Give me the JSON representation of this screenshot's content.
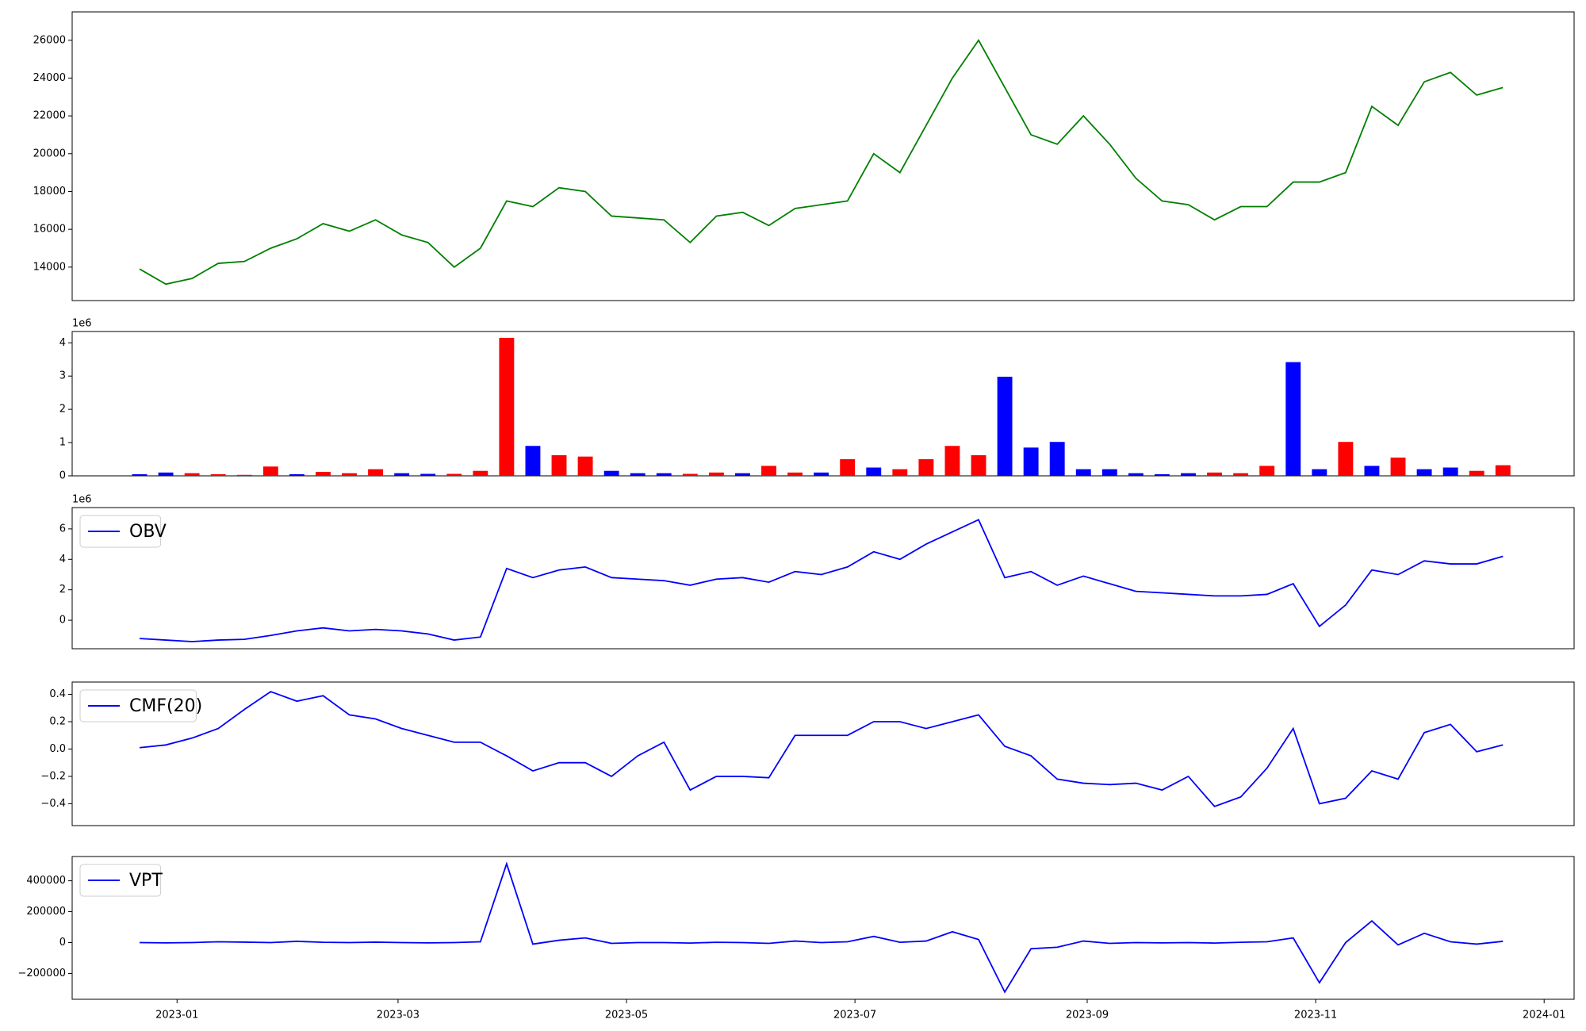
{
  "chart_data": [
    {
      "type": "line",
      "xlim": [
        "2022-12-04",
        "2024-01-09"
      ],
      "ylim": [
        12230,
        27500
      ],
      "yticks": [
        14000,
        16000,
        18000,
        20000,
        22000,
        24000,
        26000
      ],
      "x": [
        "2022-12-22",
        "2022-12-29",
        "2023-01-05",
        "2023-01-12",
        "2023-01-19",
        "2023-01-26",
        "2023-02-02",
        "2023-02-09",
        "2023-02-16",
        "2023-02-23",
        "2023-03-02",
        "2023-03-09",
        "2023-03-16",
        "2023-03-23",
        "2023-03-30",
        "2023-04-06",
        "2023-04-13",
        "2023-04-20",
        "2023-04-27",
        "2023-05-04",
        "2023-05-11",
        "2023-05-18",
        "2023-05-25",
        "2023-06-01",
        "2023-06-08",
        "2023-06-15",
        "2023-06-22",
        "2023-06-29",
        "2023-07-06",
        "2023-07-13",
        "2023-07-20",
        "2023-07-27",
        "2023-08-03",
        "2023-08-10",
        "2023-08-17",
        "2023-08-24",
        "2023-08-31",
        "2023-09-07",
        "2023-09-14",
        "2023-09-21",
        "2023-09-28",
        "2023-10-05",
        "2023-10-12",
        "2023-10-19",
        "2023-10-26",
        "2023-11-02",
        "2023-11-09",
        "2023-11-16",
        "2023-11-23",
        "2023-11-30",
        "2023-12-07",
        "2023-12-14",
        "2023-12-21"
      ],
      "series": [
        {
          "color": "#008000",
          "values": [
            13900,
            13100,
            13400,
            14200,
            14300,
            15000,
            15500,
            16300,
            15900,
            16500,
            15700,
            15300,
            14000,
            15000,
            17500,
            17200,
            18200,
            18000,
            16700,
            16600,
            16500,
            15300,
            16700,
            16900,
            16200,
            17100,
            17300,
            17500,
            20000,
            19000,
            21500,
            24000,
            26000,
            23500,
            21000,
            20500,
            22000,
            20500,
            18700,
            17500,
            17300,
            16500,
            17200,
            17200,
            18500,
            18500,
            19000,
            22500,
            21500,
            23800,
            24300,
            23100,
            23500
          ]
        }
      ]
    },
    {
      "type": "bar",
      "offset_label": "1e6",
      "xlim": [
        "2022-12-04",
        "2024-01-09"
      ],
      "ylim": [
        0,
        4.34
      ],
      "yticks": [
        0,
        1,
        2,
        3,
        4
      ],
      "x": [
        "2022-12-22",
        "2022-12-29",
        "2023-01-05",
        "2023-01-12",
        "2023-01-19",
        "2023-01-26",
        "2023-02-02",
        "2023-02-09",
        "2023-02-16",
        "2023-02-23",
        "2023-03-02",
        "2023-03-09",
        "2023-03-16",
        "2023-03-23",
        "2023-03-30",
        "2023-04-06",
        "2023-04-13",
        "2023-04-20",
        "2023-04-27",
        "2023-05-04",
        "2023-05-11",
        "2023-05-18",
        "2023-05-25",
        "2023-06-01",
        "2023-06-08",
        "2023-06-15",
        "2023-06-22",
        "2023-06-29",
        "2023-07-06",
        "2023-07-13",
        "2023-07-20",
        "2023-07-27",
        "2023-08-03",
        "2023-08-10",
        "2023-08-17",
        "2023-08-24",
        "2023-08-31",
        "2023-09-07",
        "2023-09-14",
        "2023-09-21",
        "2023-09-28",
        "2023-10-05",
        "2023-10-12",
        "2023-10-19",
        "2023-10-26",
        "2023-11-02",
        "2023-11-09",
        "2023-11-16",
        "2023-11-23",
        "2023-11-30",
        "2023-12-07",
        "2023-12-14",
        "2023-12-21"
      ],
      "values": [
        0.05,
        0.1,
        0.08,
        0.05,
        0.03,
        0.28,
        0.05,
        0.12,
        0.08,
        0.2,
        0.08,
        0.06,
        0.06,
        0.15,
        4.15,
        0.9,
        0.62,
        0.58,
        0.15,
        0.08,
        0.08,
        0.06,
        0.1,
        0.08,
        0.3,
        0.1,
        0.1,
        0.5,
        0.25,
        0.2,
        0.5,
        0.9,
        0.62,
        2.98,
        0.85,
        1.02,
        0.2,
        0.2,
        0.08,
        0.05,
        0.08,
        0.1,
        0.08,
        0.3,
        3.42,
        0.2,
        1.02,
        0.3,
        0.55,
        0.2,
        0.25,
        0.15,
        0.32
      ],
      "colors": [
        "blue",
        "blue",
        "red",
        "red",
        "red",
        "red",
        "blue",
        "red",
        "red",
        "red",
        "blue",
        "blue",
        "red",
        "red",
        "red",
        "blue",
        "red",
        "red",
        "blue",
        "blue",
        "blue",
        "red",
        "red",
        "blue",
        "red",
        "red",
        "blue",
        "red",
        "blue",
        "red",
        "red",
        "red",
        "red",
        "blue",
        "blue",
        "blue",
        "blue",
        "blue",
        "blue",
        "blue",
        "blue",
        "red",
        "red",
        "red",
        "blue",
        "blue",
        "red",
        "blue",
        "red",
        "blue",
        "blue",
        "red",
        "red"
      ]
    },
    {
      "type": "line",
      "offset_label": "1e6",
      "legend": "upper left",
      "xlim": [
        "2022-12-04",
        "2024-01-09"
      ],
      "ylim": [
        -1.87,
        7.4
      ],
      "yticks": [
        0,
        2,
        4,
        6
      ],
      "x": [
        "2022-12-22",
        "2022-12-29",
        "2023-01-05",
        "2023-01-12",
        "2023-01-19",
        "2023-01-26",
        "2023-02-02",
        "2023-02-09",
        "2023-02-16",
        "2023-02-23",
        "2023-03-02",
        "2023-03-09",
        "2023-03-16",
        "2023-03-23",
        "2023-03-30",
        "2023-04-06",
        "2023-04-13",
        "2023-04-20",
        "2023-04-27",
        "2023-05-04",
        "2023-05-11",
        "2023-05-18",
        "2023-05-25",
        "2023-06-01",
        "2023-06-08",
        "2023-06-15",
        "2023-06-22",
        "2023-06-29",
        "2023-07-06",
        "2023-07-13",
        "2023-07-20",
        "2023-07-27",
        "2023-08-03",
        "2023-08-10",
        "2023-08-17",
        "2023-08-24",
        "2023-08-31",
        "2023-09-07",
        "2023-09-14",
        "2023-09-21",
        "2023-09-28",
        "2023-10-05",
        "2023-10-12",
        "2023-10-19",
        "2023-10-26",
        "2023-11-02",
        "2023-11-09",
        "2023-11-16",
        "2023-11-23",
        "2023-11-30",
        "2023-12-07",
        "2023-12-14",
        "2023-12-21"
      ],
      "series": [
        {
          "name": "OBV",
          "color": "#0000ff",
          "values": [
            -1.2,
            -1.3,
            -1.4,
            -1.3,
            -1.25,
            -1.0,
            -0.7,
            -0.5,
            -0.7,
            -0.6,
            -0.7,
            -0.9,
            -1.3,
            -1.1,
            3.4,
            2.8,
            3.3,
            3.5,
            2.8,
            2.7,
            2.6,
            2.3,
            2.7,
            2.8,
            2.5,
            3.2,
            3.0,
            3.5,
            4.5,
            4.0,
            5.0,
            5.8,
            6.6,
            2.8,
            3.2,
            2.3,
            2.9,
            2.4,
            1.9,
            1.8,
            1.7,
            1.6,
            1.6,
            1.7,
            2.4,
            -0.4,
            1.0,
            3.3,
            3.0,
            3.9,
            3.7,
            3.7,
            4.2
          ]
        }
      ]
    },
    {
      "type": "line",
      "legend": "upper left",
      "xlim": [
        "2022-12-04",
        "2024-01-09"
      ],
      "ylim": [
        -0.56,
        0.49
      ],
      "yticks": [
        {
          "value": -0.4,
          "label": "−0.4"
        },
        {
          "value": -0.2,
          "label": "−0.2"
        },
        {
          "value": 0,
          "label": "0.0"
        },
        0.2,
        0.4
      ],
      "x": [
        "2022-12-22",
        "2022-12-29",
        "2023-01-05",
        "2023-01-12",
        "2023-01-19",
        "2023-01-26",
        "2023-02-02",
        "2023-02-09",
        "2023-02-16",
        "2023-02-23",
        "2023-03-02",
        "2023-03-09",
        "2023-03-16",
        "2023-03-23",
        "2023-03-30",
        "2023-04-06",
        "2023-04-13",
        "2023-04-20",
        "2023-04-27",
        "2023-05-04",
        "2023-05-11",
        "2023-05-18",
        "2023-05-25",
        "2023-06-01",
        "2023-06-08",
        "2023-06-15",
        "2023-06-22",
        "2023-06-29",
        "2023-07-06",
        "2023-07-13",
        "2023-07-20",
        "2023-07-27",
        "2023-08-03",
        "2023-08-10",
        "2023-08-17",
        "2023-08-24",
        "2023-08-31",
        "2023-09-07",
        "2023-09-14",
        "2023-09-21",
        "2023-09-28",
        "2023-10-05",
        "2023-10-12",
        "2023-10-19",
        "2023-10-26",
        "2023-11-02",
        "2023-11-09",
        "2023-11-16",
        "2023-11-23",
        "2023-11-30",
        "2023-12-07",
        "2023-12-14",
        "2023-12-21"
      ],
      "series": [
        {
          "name": "CMF(20)",
          "color": "#0000ff",
          "values": [
            0.01,
            0.03,
            0.08,
            0.15,
            0.29,
            0.42,
            0.35,
            0.39,
            0.25,
            0.22,
            0.15,
            0.1,
            0.05,
            0.05,
            -0.05,
            -0.16,
            -0.1,
            -0.1,
            -0.2,
            -0.05,
            0.05,
            -0.3,
            -0.2,
            -0.2,
            -0.21,
            0.1,
            0.1,
            0.1,
            0.2,
            0.2,
            0.15,
            0.2,
            0.25,
            0.02,
            -0.05,
            -0.22,
            -0.25,
            -0.26,
            -0.25,
            -0.3,
            -0.2,
            -0.42,
            -0.35,
            -0.14,
            0.15,
            -0.4,
            -0.36,
            -0.16,
            -0.22,
            0.12,
            0.18,
            -0.02,
            0.03
          ]
        }
      ]
    },
    {
      "type": "line",
      "legend": "upper left",
      "xlim": [
        "2022-12-04",
        "2024-01-09"
      ],
      "ylim": [
        -367000,
        557000
      ],
      "yticks": [
        {
          "value": -200000,
          "label": "−200000"
        },
        0,
        200000,
        400000
      ],
      "xticks": [
        {
          "value": "2023-01-01",
          "label": "2023-01"
        },
        {
          "value": "2023-03-01",
          "label": "2023-03"
        },
        {
          "value": "2023-05-01",
          "label": "2023-05"
        },
        {
          "value": "2023-07-01",
          "label": "2023-07"
        },
        {
          "value": "2023-09-01",
          "label": "2023-09"
        },
        {
          "value": "2023-11-01",
          "label": "2023-11"
        },
        {
          "value": "2024-01-01",
          "label": "2024-01"
        }
      ],
      "x": [
        "2022-12-22",
        "2022-12-29",
        "2023-01-05",
        "2023-01-12",
        "2023-01-19",
        "2023-01-26",
        "2023-02-02",
        "2023-02-09",
        "2023-02-16",
        "2023-02-23",
        "2023-03-02",
        "2023-03-09",
        "2023-03-16",
        "2023-03-23",
        "2023-03-30",
        "2023-04-06",
        "2023-04-13",
        "2023-04-20",
        "2023-04-27",
        "2023-05-04",
        "2023-05-11",
        "2023-05-18",
        "2023-05-25",
        "2023-06-01",
        "2023-06-08",
        "2023-06-15",
        "2023-06-22",
        "2023-06-29",
        "2023-07-06",
        "2023-07-13",
        "2023-07-20",
        "2023-07-27",
        "2023-08-03",
        "2023-08-10",
        "2023-08-17",
        "2023-08-24",
        "2023-08-31",
        "2023-09-07",
        "2023-09-14",
        "2023-09-21",
        "2023-09-28",
        "2023-10-05",
        "2023-10-12",
        "2023-10-19",
        "2023-10-26",
        "2023-11-02",
        "2023-11-09",
        "2023-11-16",
        "2023-11-23",
        "2023-11-30",
        "2023-12-07",
        "2023-12-14",
        "2023-12-21"
      ],
      "series": [
        {
          "name": "VPT",
          "color": "#0000ff",
          "values": [
            0,
            -2000,
            0,
            5000,
            3000,
            0,
            8000,
            2000,
            0,
            3000,
            0,
            -2000,
            0,
            5000,
            510000,
            -10000,
            15000,
            30000,
            -5000,
            0,
            0,
            -3000,
            2000,
            0,
            -5000,
            10000,
            0,
            5000,
            40000,
            2000,
            10000,
            70000,
            20000,
            -320000,
            -40000,
            -30000,
            10000,
            -5000,
            0,
            -2000,
            0,
            -3000,
            2000,
            5000,
            30000,
            -260000,
            0,
            140000,
            -15000,
            60000,
            5000,
            -10000,
            8000
          ]
        }
      ]
    }
  ]
}
